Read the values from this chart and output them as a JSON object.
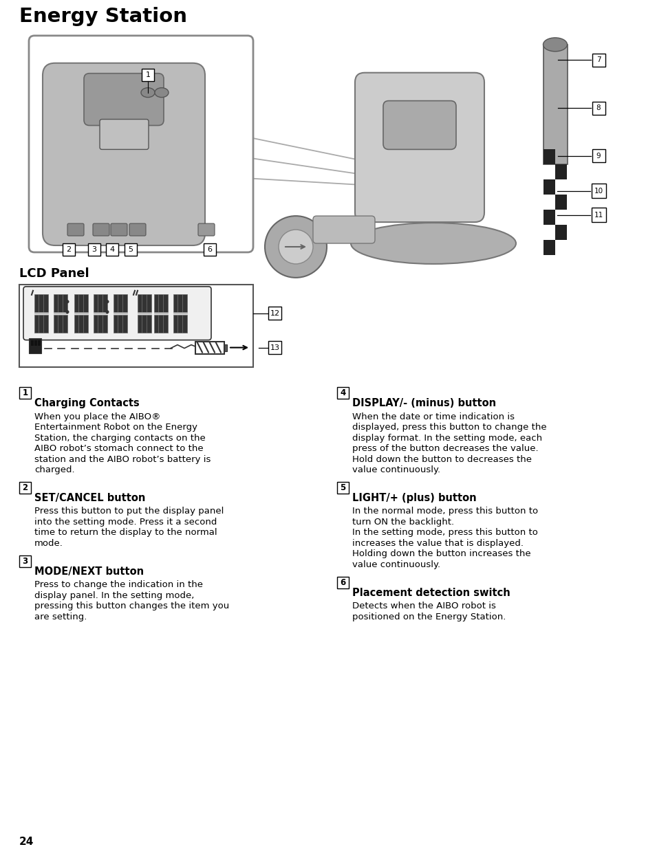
{
  "title": "Energy Station",
  "page_number": "24",
  "lcd_panel_label": "LCD Panel",
  "bg_color": "#ffffff",
  "items": [
    {
      "num": "1",
      "heading": "Charging Contacts",
      "text": "When you place the AIBO®\nEntertainment Robot on the Energy\nStation, the charging contacts on the\nAIBO robot’s stomach connect to the\nstation and the AIBO robot’s battery is\ncharged."
    },
    {
      "num": "2",
      "heading": "SET/CANCEL button",
      "text": "Press this button to put the display panel\ninto the setting mode. Press it a second\ntime to return the display to the normal\nmode."
    },
    {
      "num": "3",
      "heading": "MODE/NEXT button",
      "text": "Press to change the indication in the\ndisplay panel. In the setting mode,\npressing this button changes the item you\nare setting."
    },
    {
      "num": "4",
      "heading": "DISPLAY/- (minus) button",
      "text": "When the date or time indication is\ndisplayed, press this button to change the\ndisplay format. In the setting mode, each\npress of the button decreases the value.\nHold down the button to decreases the\nvalue continuously."
    },
    {
      "num": "5",
      "heading": "LIGHT/+ (plus) button",
      "text": "In the normal mode, press this button to\nturn ON the backlight.\nIn the setting mode, press this button to\nincreases the value that is displayed.\nHolding down the button increases the\nvalue continuously."
    },
    {
      "num": "6",
      "heading": "Placement detection switch",
      "text": "Detects when the AIBO robot is\npositioned on the Energy Station."
    }
  ]
}
